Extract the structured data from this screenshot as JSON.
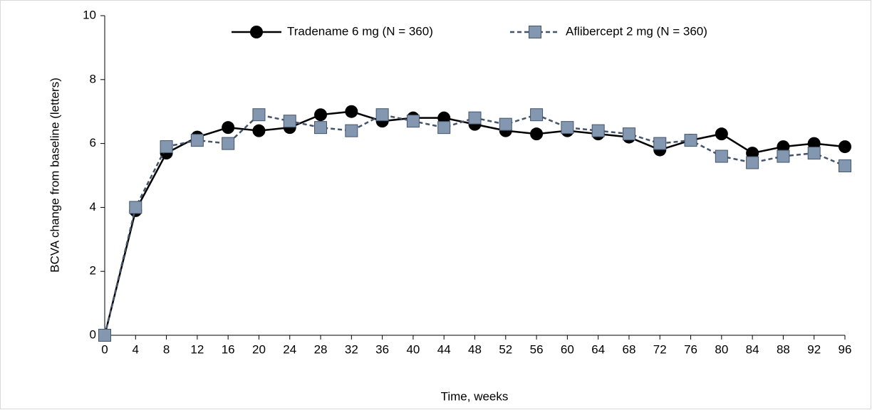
{
  "chart_data": {
    "type": "line",
    "xlabel": "Time, weeks",
    "ylabel": "BCVA change from baseline (letters)",
    "x": [
      0,
      4,
      8,
      12,
      16,
      20,
      24,
      28,
      32,
      36,
      40,
      44,
      48,
      52,
      56,
      60,
      64,
      68,
      72,
      76,
      80,
      84,
      88,
      92,
      96
    ],
    "series": [
      {
        "name": "Tradename 6 mg (N = 360)",
        "color": "#000000",
        "marker": "circle",
        "dashed": false,
        "values": [
          0,
          3.9,
          5.7,
          6.2,
          6.5,
          6.4,
          6.5,
          6.9,
          7.0,
          6.7,
          6.8,
          6.8,
          6.6,
          6.4,
          6.3,
          6.4,
          6.3,
          6.2,
          5.8,
          6.1,
          6.3,
          5.7,
          5.9,
          6.0,
          5.9
        ]
      },
      {
        "name": "Aflibercept 2 mg (N = 360)",
        "color": "#44546a",
        "marker": "square",
        "dashed": true,
        "values": [
          0,
          4.0,
          5.9,
          6.1,
          6.0,
          6.9,
          6.7,
          6.5,
          6.4,
          6.9,
          6.7,
          6.5,
          6.8,
          6.6,
          6.9,
          6.5,
          6.4,
          6.3,
          6.0,
          6.1,
          5.6,
          5.4,
          5.6,
          5.7,
          5.3
        ]
      }
    ],
    "xlim": [
      0,
      96
    ],
    "xticks": [
      0,
      4,
      8,
      12,
      16,
      20,
      24,
      28,
      32,
      36,
      40,
      44,
      48,
      52,
      56,
      60,
      64,
      68,
      72,
      76,
      80,
      84,
      88,
      92,
      96
    ],
    "ylim": [
      0,
      10
    ],
    "yticks": [
      0,
      2,
      4,
      6,
      8,
      10
    ],
    "grid": false,
    "legend": "top"
  }
}
